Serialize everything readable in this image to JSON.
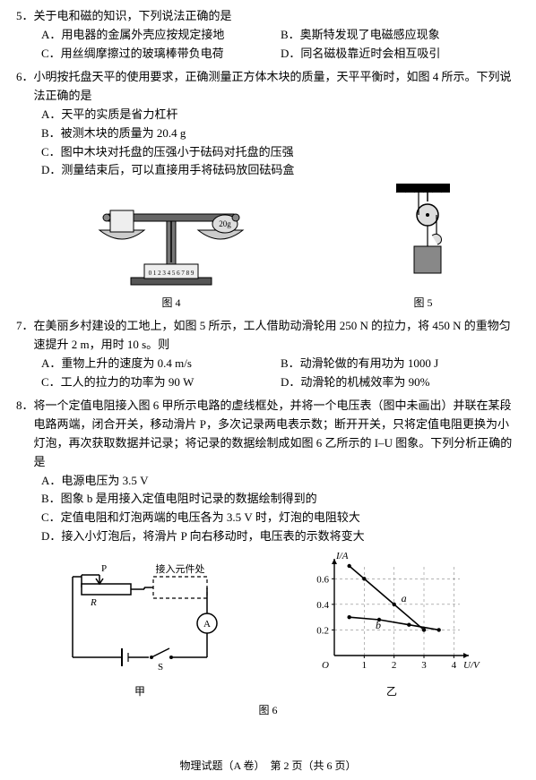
{
  "q5": {
    "num": "5．",
    "stem": "关于电和磁的知识，下列说法正确的是",
    "A": "A．用电器的金属外壳应按规定接地",
    "B": "B．奥斯特发现了电磁感应现象",
    "C": "C．用丝绸摩擦过的玻璃棒带负电荷",
    "D": "D．同名磁极靠近时会相互吸引"
  },
  "q6": {
    "num": "6．",
    "stem": "小明按托盘天平的使用要求，正确测量正方体木块的质量，天平平衡时，如图 4 所示。下列说法正确的是",
    "A": "A．天平的实质是省力杠杆",
    "B": "B．被测木块的质量为 20.4 g",
    "C": "C．图中木块对托盘的压强小于砝码对托盘的压强",
    "D": "D．测量结束后，可以直接用手将砝码放回砝码盒",
    "fig4": {
      "caption": "图 4",
      "weight_label": "20g"
    },
    "fig5": {
      "caption": "图 5"
    }
  },
  "q7": {
    "num": "7．",
    "stem": "在美丽乡村建设的工地上，如图 5 所示，工人借助动滑轮用 250 N 的拉力，将 450 N 的重物匀速提升 2 m，用时 10 s。则",
    "A": "A．重物上升的速度为 0.4 m/s",
    "B": "B．动滑轮做的有用功为 1000 J",
    "C": "C．工人的拉力的功率为 90 W",
    "D": "D．动滑轮的机械效率为 90%"
  },
  "q8": {
    "num": "8．",
    "stem": "将一个定值电阻接入图 6 甲所示电路的虚线框处，并将一个电压表（图中未画出）并联在某段电路两端，闭合开关，移动滑片 P，多次记录两电表示数；断开开关，只将定值电阻更换为小灯泡，再次获取数据并记录；将记录的数据绘制成如图 6 乙所示的 I–U 图象。下列分析正确的是",
    "A": "A．电源电压为 3.5 V",
    "B": "B．图象 b 是用接入定值电阻时记录的数据绘制得到的",
    "C": "C．定值电阻和灯泡两端的电压各为 3.5 V 时，灯泡的电阻较大",
    "D": "D．接入小灯泡后，将滑片 P 向右移动时，电压表的示数将变大",
    "fig6": {
      "caption": "图 6",
      "left_caption": "甲",
      "right_caption": "乙",
      "circuit": {
        "label_P": "P",
        "label_R": "R",
        "label_A": "A",
        "label_S": "S",
        "box_label": "接入元件处"
      },
      "chart": {
        "type": "line",
        "x_label": "U/V",
        "y_label": "I/A",
        "x_ticks": [
          "1",
          "2",
          "3",
          "4"
        ],
        "y_ticks": [
          "0.2",
          "0.4",
          "0.6"
        ],
        "xlim": [
          0,
          4.2
        ],
        "ylim": [
          0,
          0.7
        ],
        "series_a": {
          "label": "a",
          "points": [
            [
              0.5,
              0.7
            ],
            [
              1,
              0.6
            ],
            [
              2,
              0.4
            ],
            [
              3,
              0.2
            ]
          ],
          "color": "#000000"
        },
        "series_b": {
          "label": "b",
          "points": [
            [
              0.5,
              0.3
            ],
            [
              1.5,
              0.28
            ],
            [
              2.5,
              0.24
            ],
            [
              3.5,
              0.2
            ]
          ],
          "color": "#000000"
        },
        "grid_color": "#888888",
        "background_color": "#ffffff"
      }
    }
  },
  "footer": "物理试题（A 卷）　第 2 页（共 6 页）"
}
